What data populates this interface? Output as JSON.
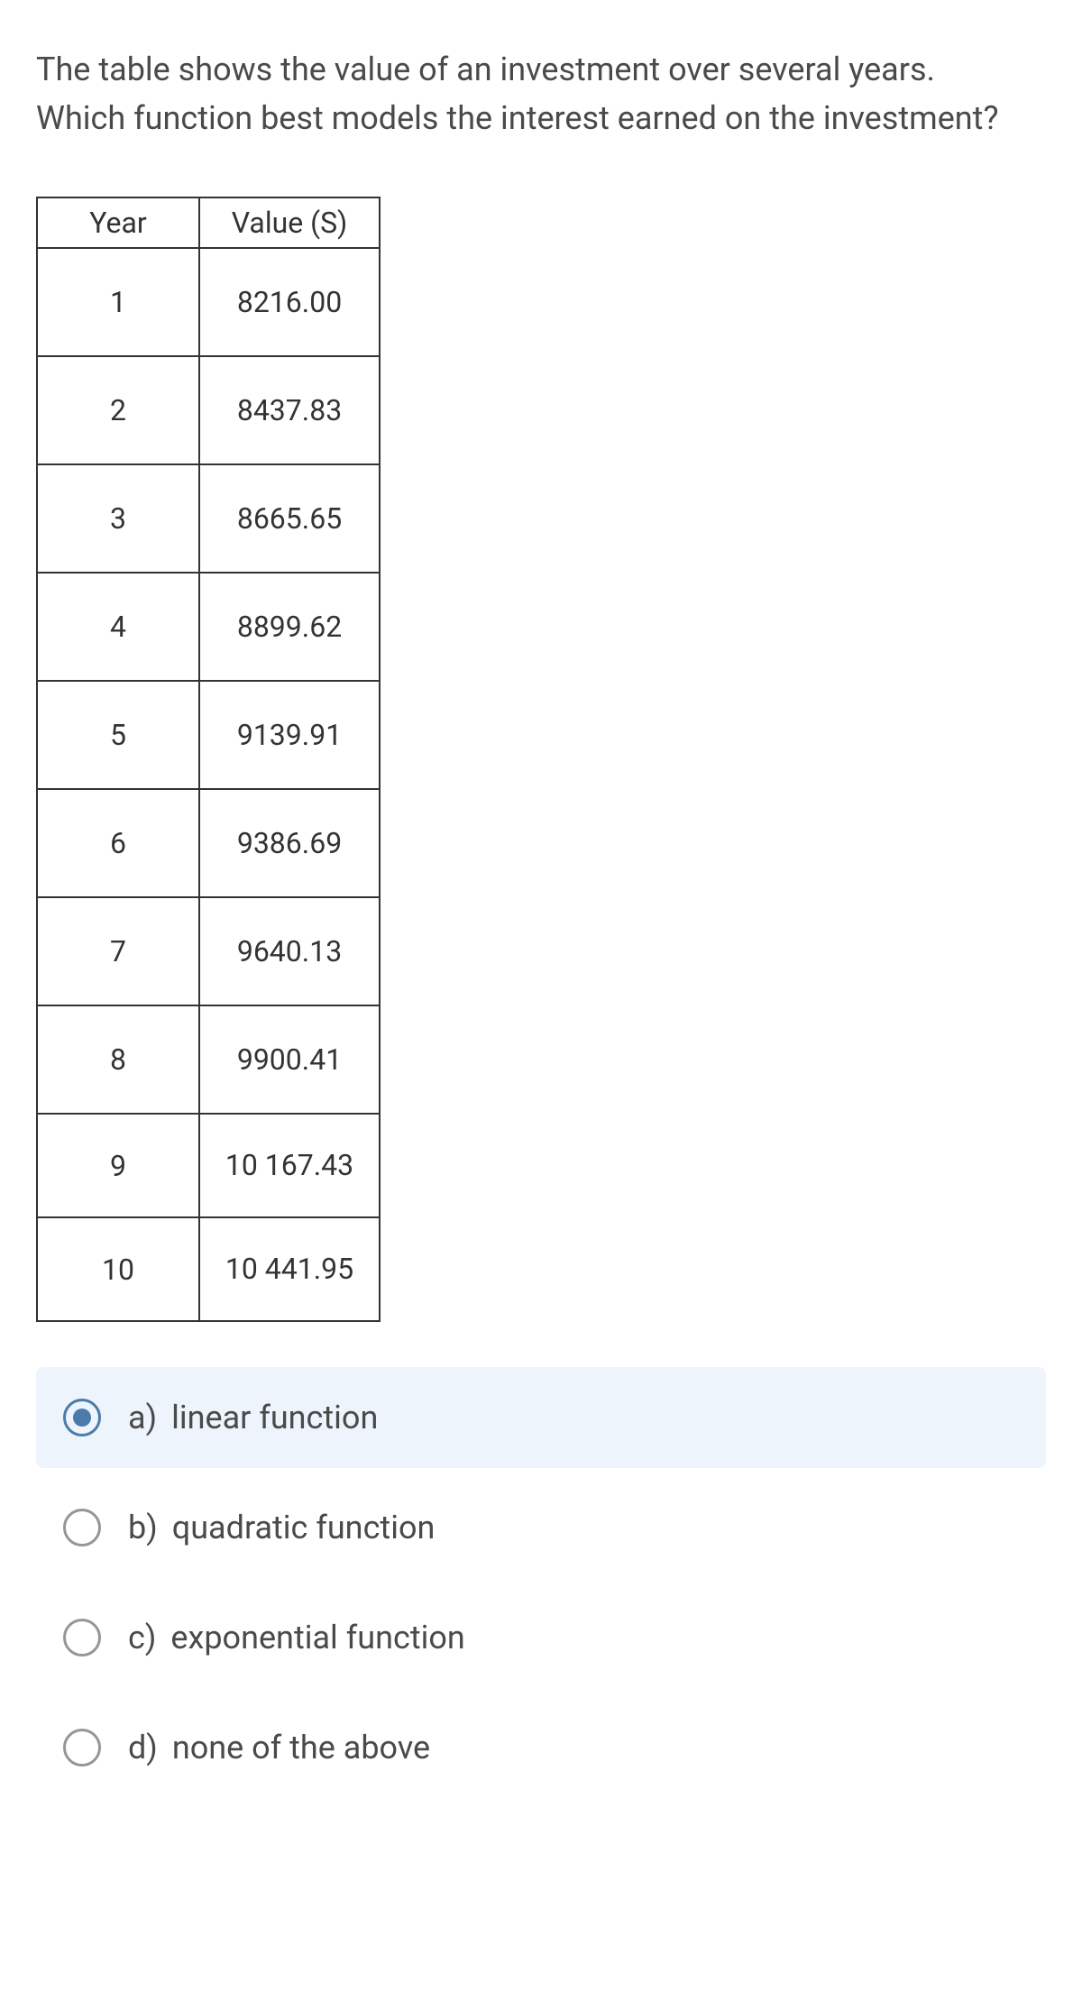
{
  "question": "The table shows the value of an investment over several years. Which function best models the interest earned on the investment?",
  "table": {
    "headers": [
      "Year",
      "Value (S)"
    ],
    "rows": [
      {
        "year": "1",
        "value": "8216.00",
        "short": false
      },
      {
        "year": "2",
        "value": "8437.83",
        "short": false
      },
      {
        "year": "3",
        "value": "8665.65",
        "short": false
      },
      {
        "year": "4",
        "value": "8899.62",
        "short": false
      },
      {
        "year": "5",
        "value": "9139.91",
        "short": false
      },
      {
        "year": "6",
        "value": "9386.69",
        "short": false
      },
      {
        "year": "7",
        "value": "9640.13",
        "short": false
      },
      {
        "year": "8",
        "value": "9900.41",
        "short": false
      },
      {
        "year": "9",
        "value": "10 167.43",
        "short": true
      },
      {
        "year": "10",
        "value": "10 441.95",
        "short": true
      }
    ]
  },
  "options": [
    {
      "letter": "a)",
      "text": "linear function",
      "selected": true
    },
    {
      "letter": "b)",
      "text": "quadratic function",
      "selected": false
    },
    {
      "letter": "c)",
      "text": "exponential function",
      "selected": false
    },
    {
      "letter": "d)",
      "text": "none of the above",
      "selected": false
    }
  ]
}
